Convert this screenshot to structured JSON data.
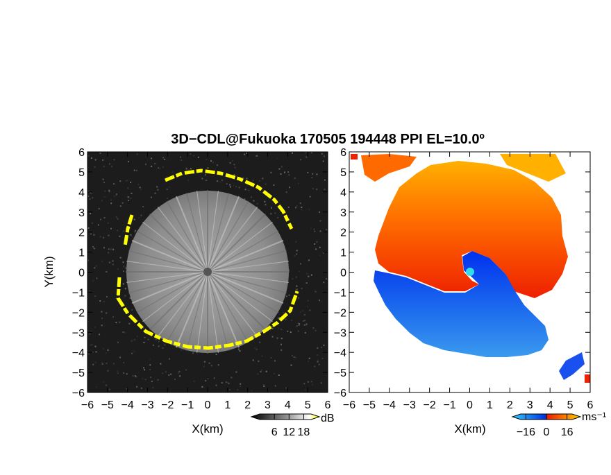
{
  "title": "3D−CDL@Fukuoka 170505 194448 PPI EL=10.0º",
  "chart_data": [
    {
      "type": "heatmap",
      "panel": "left",
      "quantity": "signal intensity",
      "xlabel": "X(km)",
      "ylabel": "Y(km)",
      "xlim": [
        -6,
        6
      ],
      "ylim": [
        -6,
        6
      ],
      "xticks": [
        "−6",
        "−5",
        "−4",
        "−3",
        "−2",
        "−1",
        "0",
        "1",
        "2",
        "3",
        "4",
        "5",
        "6"
      ],
      "yticks": [
        "−6",
        "−5",
        "−4",
        "−3",
        "−2",
        "−1",
        "0",
        "1",
        "2",
        "3",
        "4",
        "5",
        "6"
      ],
      "colorbar": {
        "label": "dB",
        "ticks": [
          "6",
          "12",
          "18"
        ],
        "range": [
          0,
          21
        ],
        "colors": [
          "#000000",
          "#ffffff",
          "#ffff00"
        ]
      },
      "features": {
        "echo_radius_km": 4.0,
        "echo_edge": "yellow ring",
        "center": [
          0,
          0
        ]
      }
    },
    {
      "type": "heatmap",
      "panel": "right",
      "quantity": "Doppler velocity",
      "xlabel": "X(km)",
      "ylabel": "",
      "xlim": [
        -6,
        6
      ],
      "ylim": [
        -6,
        6
      ],
      "xticks": [
        "−6",
        "−5",
        "−4",
        "−3",
        "−2",
        "−1",
        "0",
        "1",
        "2",
        "3",
        "4",
        "5",
        "6"
      ],
      "yticks": [
        "−6",
        "−5",
        "−4",
        "−3",
        "−2",
        "−1",
        "0",
        "1",
        "2",
        "3",
        "4",
        "5",
        "6"
      ],
      "colorbar": {
        "label": "ms⁻¹",
        "ticks": [
          "−16",
          "0",
          "16"
        ],
        "range": [
          -20,
          20
        ],
        "colors": [
          "#33ccff",
          "#0033dd",
          "#ee2200",
          "#ffcc00"
        ]
      },
      "features": {
        "north_half": "positive velocity (red to orange)",
        "south_half": "negative velocity (blue)",
        "center": [
          0,
          0
        ]
      }
    }
  ]
}
